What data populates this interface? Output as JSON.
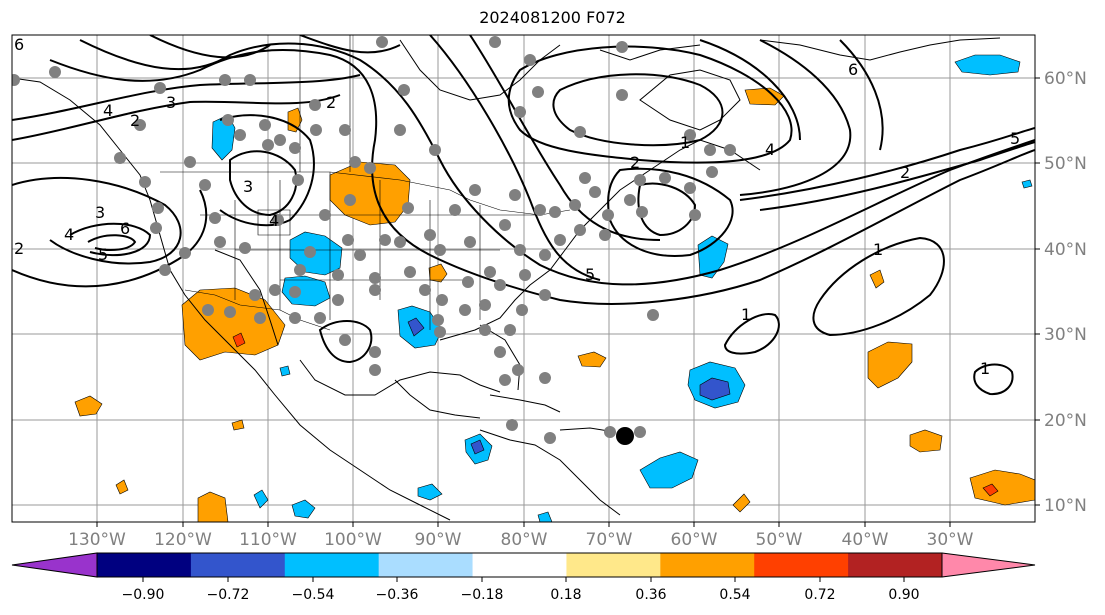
{
  "title": "2024081200 F072",
  "map": {
    "lon_labels": [
      "130°W",
      "120°W",
      "110°W",
      "100°W",
      "90°W",
      "80°W",
      "70°W",
      "60°W",
      "50°W",
      "40°W",
      "30°W"
    ],
    "lat_labels": [
      "60°N",
      "50°N",
      "40°N",
      "30°N",
      "20°N",
      "10°N"
    ],
    "contour_labels": [
      "6",
      "4",
      "3",
      "2",
      "3",
      "2",
      "3",
      "4",
      "6",
      "5",
      "6",
      "2",
      "1",
      "4",
      "5",
      "2",
      "1",
      "1",
      "1",
      "4",
      "2",
      "5"
    ],
    "grid": true,
    "colors": {
      "purple": "#9933cc",
      "navy": "#000080",
      "blue": "#3355cc",
      "deep_sky": "#00bfff",
      "light_blue": "#aaddff",
      "white": "#ffffff",
      "light_yellow": "#ffe88a",
      "orange": "#ffa000",
      "orange_red": "#ff4000",
      "firebrick": "#b22222",
      "pink": "#ff88aa"
    }
  },
  "colorbar": {
    "tick_labels": [
      "−0.90",
      "−0.72",
      "−0.54",
      "−0.36",
      "−0.18",
      "0.18",
      "0.36",
      "0.54",
      "0.72",
      "0.90"
    ],
    "colors": [
      "#9933cc",
      "#000080",
      "#3355cc",
      "#00bfff",
      "#aaddff",
      "#ffffff",
      "#ffe88a",
      "#ffa000",
      "#ff4000",
      "#b22222",
      "#ff88aa"
    ]
  }
}
